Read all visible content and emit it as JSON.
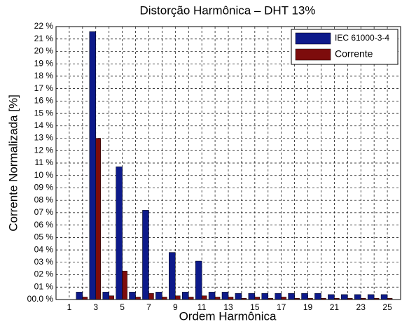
{
  "chart_data": {
    "type": "bar",
    "title": "Distorção Harmônica – DHT 13%",
    "x_label": "Ordem Harmônica",
    "y_label": "Corrente Normalizada [%]",
    "categories": [
      "1",
      null,
      "3",
      null,
      "5",
      null,
      "7",
      null,
      "9",
      null,
      "11",
      null,
      "13",
      null,
      "15",
      null,
      "17",
      null,
      "19",
      null,
      "21",
      null,
      "23",
      null,
      "25"
    ],
    "series": [
      {
        "name": "IEC 61000-3-4",
        "color": "#0d1a8a",
        "values": [
          null,
          0.6,
          21.6,
          0.6,
          10.7,
          0.6,
          7.2,
          0.6,
          3.8,
          0.6,
          3.1,
          0.6,
          0.6,
          0.5,
          0.5,
          0.5,
          0.5,
          0.5,
          0.5,
          0.5,
          0.4,
          0.4,
          0.4,
          0.4,
          0.4
        ]
      },
      {
        "name": "Corrente",
        "color": "#7d0c0c",
        "values": [
          null,
          0.2,
          13.0,
          0.3,
          2.3,
          0.2,
          0.5,
          0.2,
          0.3,
          0.2,
          0.3,
          0.2,
          0.2,
          0.1,
          0.2,
          0.1,
          0.2,
          0.1,
          0.1,
          0.1,
          0.1,
          0.1,
          0.1,
          0.1,
          0.1
        ]
      }
    ],
    "ylim": [
      0,
      22
    ],
    "yticks": [
      {
        "value": 0,
        "label": "00.0 %"
      },
      {
        "value": 1,
        "label": "01 %"
      },
      {
        "value": 2,
        "label": "02 %"
      },
      {
        "value": 3,
        "label": "03 %"
      },
      {
        "value": 4,
        "label": "04 %"
      },
      {
        "value": 5,
        "label": "05 %"
      },
      {
        "value": 6,
        "label": "06 %"
      },
      {
        "value": 7,
        "label": "07 %"
      },
      {
        "value": 8,
        "label": "08 %"
      },
      {
        "value": 9,
        "label": "09 %"
      },
      {
        "value": 10,
        "label": "10 %"
      },
      {
        "value": 11,
        "label": "11 %"
      },
      {
        "value": 12,
        "label": "12 %"
      },
      {
        "value": 13,
        "label": "13 %"
      },
      {
        "value": 14,
        "label": "14 %"
      },
      {
        "value": 15,
        "label": "15 %"
      },
      {
        "value": 16,
        "label": "16 %"
      },
      {
        "value": 17,
        "label": "17 %"
      },
      {
        "value": 18,
        "label": "18 %"
      },
      {
        "value": 19,
        "label": "19 %"
      },
      {
        "value": 20,
        "label": "20 %"
      },
      {
        "value": 21,
        "label": "21 %"
      },
      {
        "value": 22,
        "label": "22 %"
      }
    ],
    "grid": true,
    "legend": "upper right"
  }
}
